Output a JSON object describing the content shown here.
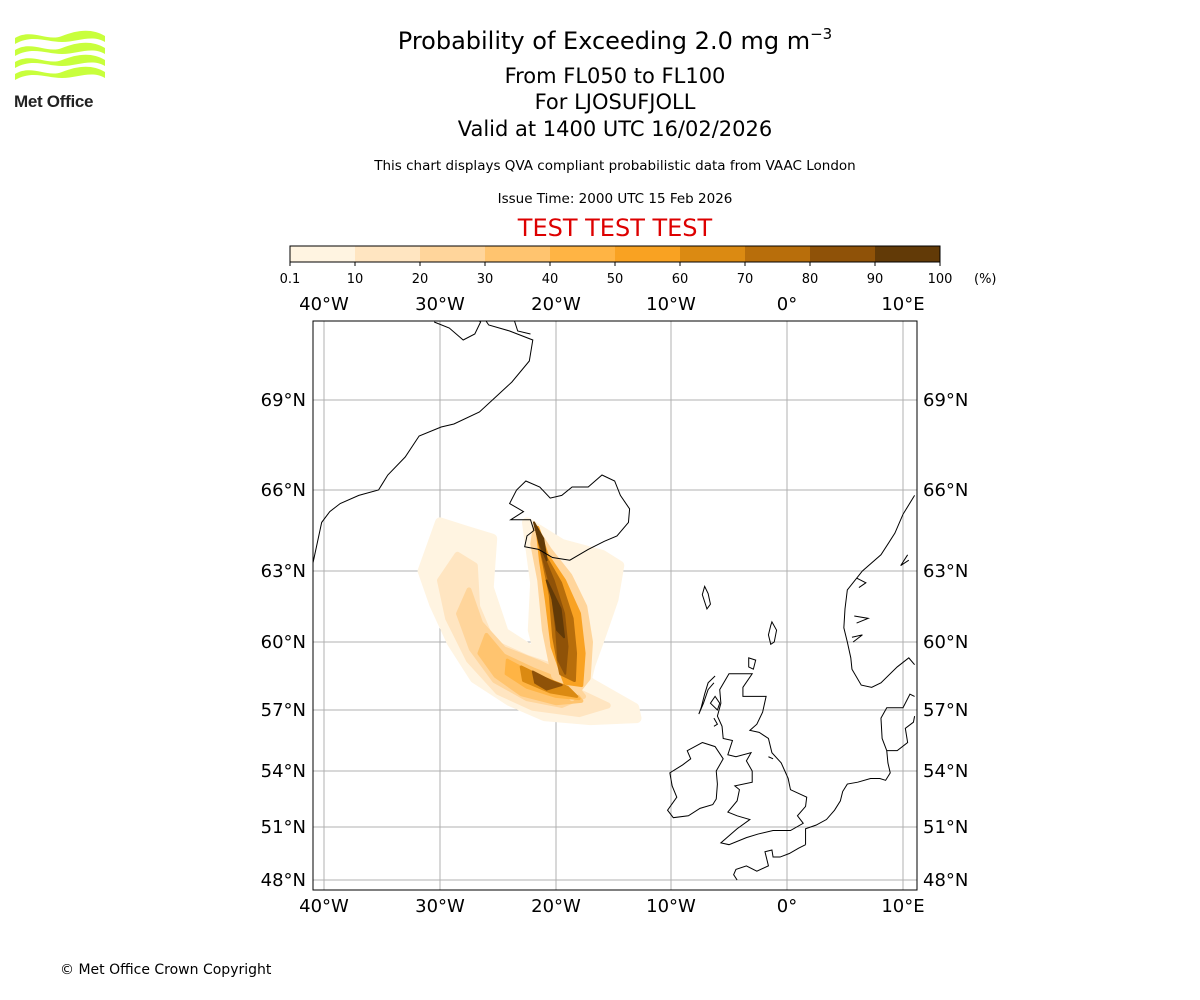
{
  "title": {
    "main": "Probability of Exceeding 2.0 mg m",
    "main_sup": "−3",
    "levels": "From FL050 to FL100",
    "location": "For LJOSUFJOLL",
    "valid": "Valid at 1400 UTC 16/02/2026",
    "description": "This chart displays QVA compliant probabilistic data from VAAC London",
    "issue_time": "Issue Time: 2000 UTC 15 Feb 2026",
    "test_banner": "TEST TEST TEST"
  },
  "logo": {
    "text": "Met Office"
  },
  "colors": {
    "banner": "#dd0000",
    "logo_green": "#c8ff3c",
    "grid": "#b0b0b0",
    "coast": "#000000"
  },
  "colorbar": {
    "ticks": [
      "0.1",
      "10",
      "20",
      "30",
      "40",
      "50",
      "60",
      "70",
      "80",
      "90",
      "100"
    ],
    "unit": "(%)",
    "colors": [
      "#fff4e1",
      "#ffe5c1",
      "#ffd59b",
      "#ffc46f",
      "#ffb444",
      "#f9a222",
      "#db8a12",
      "#b86e0b",
      "#8f5208",
      "#623a07"
    ]
  },
  "map": {
    "lon_labels": [
      "40°W",
      "30°W",
      "20°W",
      "10°W",
      "0°",
      "10°E"
    ],
    "lat_labels": [
      "69°N",
      "66°N",
      "63°N",
      "60°N",
      "57°N",
      "54°N",
      "51°N",
      "48°N"
    ],
    "lon_values": [
      -40,
      -30,
      -20,
      -10,
      0,
      10
    ],
    "lat_values": [
      69,
      66,
      63,
      60,
      57,
      54,
      51,
      48
    ],
    "extent": {
      "lon_min": -41,
      "lon_max": 11,
      "lat_min": 47.6,
      "lat_max": 71.9
    }
  },
  "copyright": "© Met Office Crown Copyright"
}
